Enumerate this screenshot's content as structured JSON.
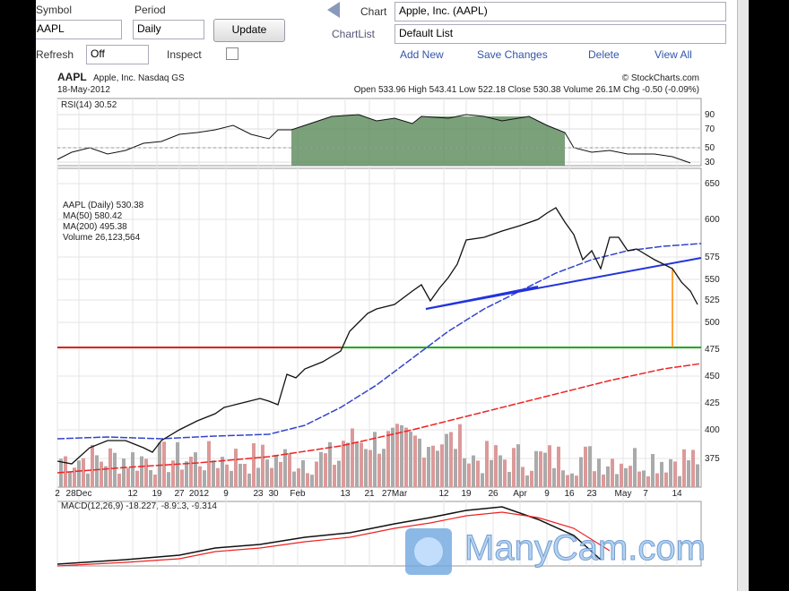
{
  "toolbar": {
    "symbol_label": "Symbol",
    "symbol": "AAPL",
    "period_label": "Period",
    "period": "Daily",
    "update": "Update",
    "chart_label": "Chart",
    "chart_name": "Apple, Inc. (AAPL)",
    "chartlist_label": "ChartList",
    "chartlist": "Default List",
    "refresh_label": "Refresh",
    "refresh": "Off",
    "inspect": "Inspect",
    "actions": [
      "Add New",
      "Save Changes",
      "Delete",
      "View All"
    ]
  },
  "chart": {
    "symbol": "AAPL",
    "name": "Apple, Inc. Nasdaq GS",
    "credit": "© StockCharts.com",
    "date": "18-May-2012",
    "quote": "Open 533.96 High 543.41 Low 522.18 Close 530.38 Volume 26.1M Chg -0.50 (-0.09%)",
    "rsi": "RSI(14) 30.52",
    "rsi_ticks": [
      "90",
      "70",
      "50",
      "30"
    ],
    "legend": [
      "AAPL (Daily) 530.38",
      "MA(50) 580.42",
      "MA(200) 495.38",
      "Volume 26,123,564"
    ],
    "price_ticks": [
      "650",
      "600",
      "575",
      "550",
      "525",
      "500",
      "475",
      "450",
      "425",
      "400",
      "375"
    ],
    "dates": [
      "2",
      "28Dec",
      "12",
      "19",
      "27",
      "2012",
      "9",
      "23",
      "30",
      "Feb",
      "13",
      "21",
      "27Mar",
      "12",
      "19",
      "26",
      "Apr",
      "9",
      "16",
      "23",
      "May",
      "7",
      "14"
    ],
    "macd": "MACD(12,26,9) -18.227, -8.913, -9.314"
  },
  "watermark": "ManyCam.com"
}
